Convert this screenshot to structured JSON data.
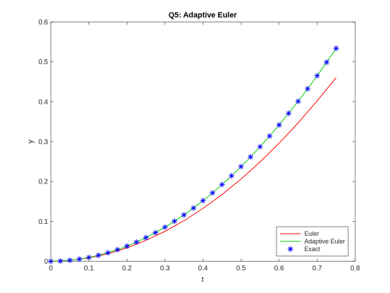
{
  "chart_data": {
    "type": "line",
    "title": "Q5: Adaptive Euler",
    "xlabel": "t",
    "ylabel": "y",
    "xlim": [
      0,
      0.8
    ],
    "ylim": [
      0,
      0.6
    ],
    "xticks": [
      "0",
      "0.1",
      "0.2",
      "0.3",
      "0.4",
      "0.5",
      "0.6",
      "0.7",
      "0.8"
    ],
    "yticks": [
      "0",
      "0.1",
      "0.2",
      "0.3",
      "0.4",
      "0.5",
      "0.6"
    ],
    "grid": false,
    "legend_position": "bottom-right",
    "series": [
      {
        "name": "Euler",
        "style": "line",
        "color": "#ff0000",
        "x": [
          0,
          0.05,
          0.1,
          0.15,
          0.2,
          0.25,
          0.3,
          0.35,
          0.4,
          0.45,
          0.5,
          0.55,
          0.6,
          0.65,
          0.7,
          0.75
        ],
        "y": [
          0,
          0.0021,
          0.0086,
          0.0191,
          0.0337,
          0.0523,
          0.075,
          0.1017,
          0.1325,
          0.1672,
          0.2061,
          0.249,
          0.296,
          0.347,
          0.402,
          0.4605
        ]
      },
      {
        "name": "Adaptive Euler",
        "style": "line",
        "color": "#00cc00",
        "x": [
          0,
          0.025,
          0.05,
          0.075,
          0.1,
          0.125,
          0.15,
          0.175,
          0.2,
          0.225,
          0.25,
          0.275,
          0.3,
          0.325,
          0.35,
          0.375,
          0.4,
          0.425,
          0.45,
          0.475,
          0.5,
          0.525,
          0.55,
          0.575,
          0.6,
          0.625,
          0.65,
          0.675,
          0.7,
          0.725,
          0.75
        ],
        "y": [
          0,
          0.0006,
          0.0024,
          0.0054,
          0.0095,
          0.0148,
          0.0213,
          0.029,
          0.0379,
          0.048,
          0.0593,
          0.0718,
          0.0854,
          0.1003,
          0.1163,
          0.1335,
          0.1519,
          0.1715,
          0.1923,
          0.2142,
          0.2374,
          0.2617,
          0.2872,
          0.3139,
          0.3418,
          0.3709,
          0.4011,
          0.4325,
          0.4652,
          0.4989,
          0.5339
        ]
      },
      {
        "name": "Exact",
        "style": "marker",
        "marker": "asterisk",
        "color": "#0000ff",
        "x": [
          0,
          0.025,
          0.05,
          0.075,
          0.1,
          0.125,
          0.15,
          0.175,
          0.2,
          0.225,
          0.25,
          0.275,
          0.3,
          0.325,
          0.35,
          0.375,
          0.4,
          0.425,
          0.45,
          0.475,
          0.5,
          0.525,
          0.55,
          0.575,
          0.6,
          0.625,
          0.65,
          0.675,
          0.7,
          0.725,
          0.75
        ],
        "y": [
          0,
          0.0006,
          0.0024,
          0.0054,
          0.0095,
          0.0148,
          0.0213,
          0.029,
          0.0379,
          0.048,
          0.0593,
          0.0718,
          0.0854,
          0.1003,
          0.1163,
          0.1335,
          0.1519,
          0.1715,
          0.1923,
          0.2142,
          0.2374,
          0.2617,
          0.2872,
          0.3139,
          0.3418,
          0.3709,
          0.4011,
          0.4325,
          0.4652,
          0.4989,
          0.5339
        ]
      }
    ]
  }
}
